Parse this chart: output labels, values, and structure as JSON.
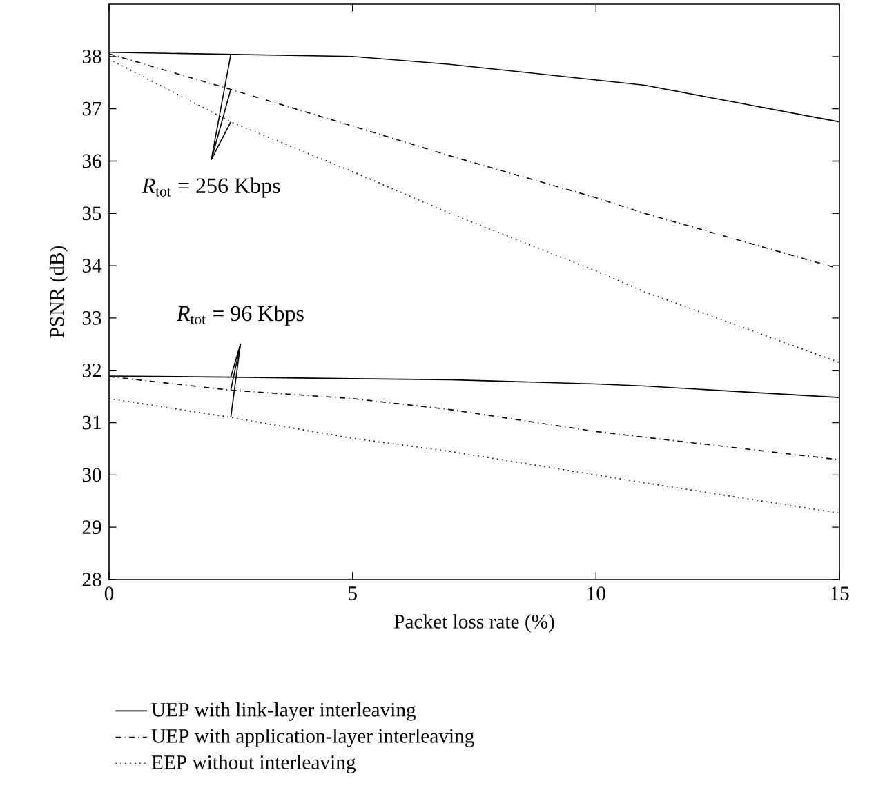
{
  "chart_data": {
    "type": "line",
    "xlabel": "Packet loss rate (%)",
    "ylabel": "PSNR (dB)",
    "x": [
      0,
      2.5,
      5,
      7,
      10,
      11,
      15
    ],
    "series": [
      {
        "name": "UEP with link-layer interleaving",
        "color": "#000000",
        "line_style": "solid",
        "values": [
          38.08,
          38.04,
          38.0,
          37.85,
          37.55,
          37.45,
          36.75
        ]
      },
      {
        "name": "UEP with application-layer interleaving",
        "color": "#000000",
        "line_style": "dashdot",
        "values": [
          38.05,
          37.37,
          36.67,
          36.1,
          35.3,
          35.0,
          33.94
        ]
      },
      {
        "name": "EEP without interleaving",
        "color": "#000000",
        "line_style": "dotted",
        "values": [
          37.95,
          36.75,
          35.8,
          35.0,
          33.9,
          33.5,
          32.15
        ]
      },
      {
        "color": "#000000",
        "line_style": "solid",
        "values": [
          31.89,
          31.87,
          31.84,
          31.82,
          31.74,
          31.7,
          31.48
        ]
      },
      {
        "color": "#000000",
        "line_style": "dashdot",
        "values": [
          31.88,
          31.62,
          31.46,
          31.25,
          30.83,
          30.72,
          30.29
        ]
      },
      {
        "color": "#000000",
        "line_style": "dotted",
        "values": [
          31.46,
          31.1,
          30.7,
          30.45,
          30.0,
          29.85,
          29.27
        ]
      }
    ],
    "annotations": [
      {
        "text": "*R*$_{tot}$ = 256 Kbps",
        "x": 2.5,
        "y": 37.37
      },
      {
        "text": "*R*$_{tot}$ = 96 Kbps",
        "x": 2.5,
        "y": 31.62
      }
    ],
    "xlim": [
      0,
      15
    ],
    "ylim": [
      28,
      39
    ],
    "xticks": [
      0,
      5,
      10,
      15
    ],
    "yticks": [
      28,
      29,
      30,
      31,
      32,
      33,
      34,
      35,
      36,
      37,
      38
    ],
    "grid": false,
    "legend": "bottom",
    "marker": "none"
  }
}
